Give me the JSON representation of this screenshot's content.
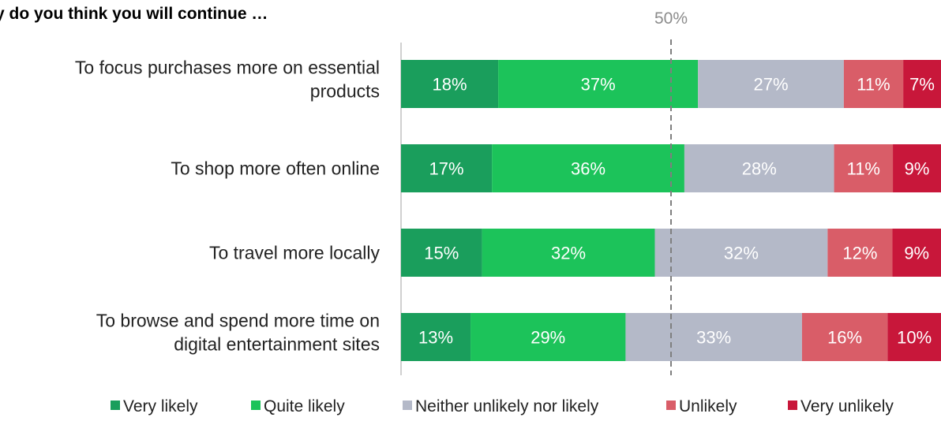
{
  "chart_data": {
    "type": "bar",
    "orientation": "horizontal",
    "stacked": true,
    "title": "y do you think you will continue …",
    "categories": [
      [
        "To focus purchases more on essential",
        "products"
      ],
      [
        "To shop more often online"
      ],
      [
        "To travel more locally"
      ],
      [
        "To browse and spend more time on",
        "digital entertainment sites"
      ]
    ],
    "series": [
      {
        "name": "Very likely",
        "color": "#1a9e5c",
        "values": [
          18,
          17,
          15,
          13
        ]
      },
      {
        "name": "Quite likely",
        "color": "#1cc35a",
        "values": [
          37,
          36,
          32,
          29
        ]
      },
      {
        "name": "Neither unlikely nor likely",
        "color": "#b4b9c8",
        "values": [
          27,
          28,
          32,
          33
        ]
      },
      {
        "name": "Unlikely",
        "color": "#d95d68",
        "values": [
          11,
          11,
          12,
          16
        ]
      },
      {
        "name": "Very unlikely",
        "color": "#c8173a",
        "values": [
          7,
          9,
          9,
          10
        ]
      }
    ],
    "value_suffix": "%",
    "reference_line": {
      "value": 50,
      "label": "50%"
    },
    "legend_position": "bottom",
    "grid": false
  }
}
